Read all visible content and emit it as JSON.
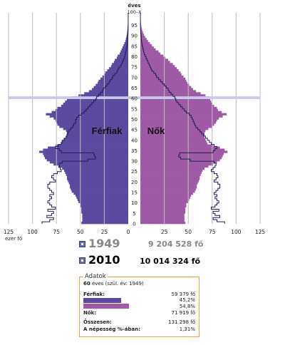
{
  "chart_data": {
    "type": "population-pyramid",
    "y_unit_label": "éves",
    "y_top_label": "100–X",
    "y_ticks": [
      0,
      5,
      10,
      15,
      20,
      25,
      30,
      35,
      40,
      45,
      50,
      55,
      60,
      65,
      70,
      75,
      80,
      85,
      90,
      95
    ],
    "x_ticks_left": [
      "125",
      "100",
      "75",
      "50",
      "25",
      "0"
    ],
    "x_ticks_right": [
      "25",
      "50",
      "75",
      "100",
      "125"
    ],
    "x_unit_label": "ezer fő",
    "xlim": [
      0,
      125
    ],
    "highlight_age": 60,
    "left_label": "Férfiak",
    "right_label": "Nők",
    "colors": {
      "male": "#5b4a9f",
      "female": "#9f5aa6",
      "outline": "#1f1f55",
      "grid": "#bdbdbd",
      "highlight": "#c9c9ee"
    },
    "series": [
      {
        "name": "2010",
        "ages": [
          0,
          1,
          2,
          3,
          4,
          5,
          6,
          7,
          8,
          9,
          10,
          11,
          12,
          13,
          14,
          15,
          16,
          17,
          18,
          19,
          20,
          21,
          22,
          23,
          24,
          25,
          26,
          27,
          28,
          29,
          30,
          31,
          32,
          33,
          34,
          35,
          36,
          37,
          38,
          39,
          40,
          41,
          42,
          43,
          44,
          45,
          46,
          47,
          48,
          49,
          50,
          51,
          52,
          53,
          54,
          55,
          56,
          57,
          58,
          59,
          60,
          61,
          62,
          63,
          64,
          65,
          66,
          67,
          68,
          69,
          70,
          71,
          72,
          73,
          74,
          75,
          76,
          77,
          78,
          79,
          80,
          81,
          82,
          83,
          84,
          85,
          86,
          87,
          88,
          89,
          90,
          91,
          92,
          93,
          94,
          95,
          96,
          97,
          98,
          99,
          100
        ],
        "male": [
          49,
          48,
          48,
          48,
          48,
          49,
          49,
          49,
          50,
          50,
          52,
          53,
          54,
          55,
          57,
          59,
          60,
          61,
          61,
          62,
          63,
          64,
          64,
          65,
          66,
          67,
          69,
          73,
          78,
          82,
          85,
          87,
          88,
          89,
          93,
          89,
          84,
          76,
          70,
          69,
          67,
          65,
          64,
          64,
          65,
          68,
          72,
          74,
          75,
          76,
          78,
          82,
          86,
          80,
          76,
          74,
          70,
          68,
          66,
          64,
          59,
          52,
          46,
          41,
          38,
          36,
          34,
          32,
          31,
          29,
          27,
          25,
          24,
          22,
          20,
          18,
          17,
          15,
          14,
          12,
          11,
          9,
          8,
          7,
          6,
          5,
          4,
          3,
          2.5,
          2,
          1.6,
          1.2,
          1,
          0.8,
          0.6,
          0.4,
          0.3,
          0.2,
          0.1,
          0.1,
          0.1
        ],
        "female": [
          47,
          46,
          46,
          46,
          46,
          47,
          47,
          47,
          48,
          48,
          50,
          51,
          52,
          53,
          55,
          57,
          58,
          59,
          59,
          60,
          61,
          62,
          62,
          63,
          64,
          65,
          67,
          71,
          76,
          80,
          83,
          85,
          86,
          87,
          91,
          88,
          83,
          76,
          70,
          69,
          68,
          67,
          67,
          67,
          68,
          71,
          75,
          77,
          79,
          80,
          82,
          86,
          90,
          85,
          81,
          80,
          77,
          75,
          74,
          73,
          72,
          68,
          63,
          58,
          55,
          53,
          51,
          49,
          48,
          47,
          45,
          43,
          42,
          40,
          38,
          36,
          34,
          31,
          29,
          26,
          24,
          21,
          19,
          16,
          14,
          12,
          10,
          8,
          6.5,
          5,
          3.8,
          2.8,
          2,
          1.5,
          1,
          0.7,
          0.5,
          0.3,
          0.2,
          0.2,
          0.1
        ]
      },
      {
        "name": "1949",
        "ages": [
          0,
          1,
          2,
          3,
          4,
          5,
          6,
          7,
          8,
          9,
          10,
          11,
          12,
          13,
          14,
          15,
          16,
          17,
          18,
          19,
          20,
          21,
          22,
          23,
          24,
          25,
          26,
          27,
          28,
          29,
          30,
          31,
          32,
          33,
          34,
          35,
          36,
          37,
          38,
          39,
          40,
          41,
          42,
          43,
          44,
          45,
          46,
          47,
          48,
          49,
          50,
          51,
          52,
          53,
          54,
          55,
          56,
          57,
          58,
          59,
          60,
          61,
          62,
          63,
          64,
          65,
          66,
          67,
          68,
          69,
          70,
          71,
          72,
          73,
          74,
          75,
          76,
          77,
          78,
          79,
          80,
          81,
          82,
          83,
          84,
          85,
          86,
          87,
          88,
          89,
          90,
          91,
          92,
          93,
          94,
          95,
          96,
          97,
          98,
          99,
          100
        ],
        "male": [
          90,
          82,
          78,
          85,
          80,
          78,
          84,
          76,
          80,
          82,
          84,
          82,
          80,
          82,
          78,
          80,
          82,
          84,
          84,
          82,
          76,
          78,
          80,
          78,
          74,
          70,
          71,
          72,
          72,
          69,
          42,
          34,
          35,
          36,
          70,
          72,
          76,
          73,
          70,
          69,
          67,
          65,
          64,
          63,
          62,
          60,
          58,
          57,
          55,
          55,
          54,
          52,
          49,
          46,
          44,
          42,
          40,
          38,
          36,
          34,
          33,
          31,
          29,
          27,
          26,
          24,
          22,
          20,
          19,
          17,
          16,
          14,
          12,
          11,
          10,
          8,
          7,
          6,
          5,
          4,
          3.5,
          3,
          2.5,
          2,
          1.5,
          1.2,
          1,
          0.8,
          0.6,
          0.4,
          0.3,
          0.2,
          0.15,
          0.1,
          0.1,
          0.1,
          0.05,
          0.05,
          0.05,
          0.05,
          0.05
        ],
        "female": [
          88,
          80,
          76,
          83,
          78,
          76,
          82,
          74,
          78,
          80,
          82,
          80,
          78,
          80,
          77,
          79,
          81,
          83,
          83,
          81,
          77,
          79,
          81,
          80,
          77,
          74,
          76,
          78,
          79,
          77,
          52,
          42,
          40,
          41,
          76,
          78,
          80,
          77,
          74,
          72,
          70,
          68,
          66,
          64,
          62,
          60,
          58,
          57,
          56,
          55,
          54,
          53,
          51,
          48,
          46,
          44,
          42,
          40,
          38,
          37,
          36,
          34,
          32,
          30,
          29,
          27,
          25,
          23,
          21,
          19,
          17,
          16,
          14,
          12,
          11,
          10,
          9,
          8,
          7,
          6,
          5,
          4,
          3.5,
          3,
          2.5,
          2,
          1.6,
          1.3,
          1,
          0.8,
          0.6,
          0.4,
          0.3,
          0.2,
          0.15,
          0.1,
          0.1,
          0.05,
          0.05,
          0.05,
          0.05
        ]
      }
    ]
  },
  "years": [
    {
      "label": "1949",
      "population": "9 204 528 fő",
      "color": "#888888"
    },
    {
      "label": "2010",
      "population": "10 014 324 fő",
      "color": "#000000"
    }
  ],
  "info": {
    "title": "Adatok",
    "age_value": "60",
    "age_suffix": " éves (szül. év: 1949)",
    "male_label": "Férfiak:",
    "male_value": "59 379 fő",
    "male_pct": "45,2%",
    "female_pct": "54,8%",
    "female_label": "Nők:",
    "female_value": "71 919 fő",
    "total_label": "Összesen:",
    "total_value": "131 298 fő",
    "share_label": "A népesség %-ában:",
    "share_value": "1,31%",
    "male_share": 0.452,
    "female_share": 0.548
  }
}
